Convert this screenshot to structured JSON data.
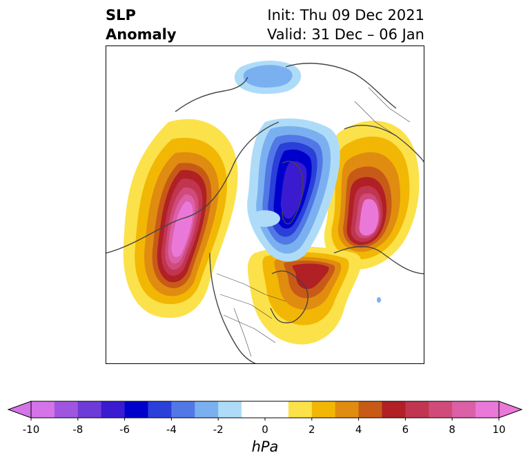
{
  "title": {
    "left_line1": "SLP",
    "left_line2": "Anomaly",
    "init": "Init: Thu 09 Dec 2021",
    "valid": "Valid: 31 Dec – 06 Jan"
  },
  "colorbar": {
    "unit": "hPa",
    "min": -10,
    "max": 10,
    "extend": "both",
    "ticks": [
      "-10",
      "-8",
      "-6",
      "-4",
      "-2",
      "0",
      "2",
      "4",
      "6",
      "8",
      "10"
    ],
    "bins": [
      {
        "range": [
          -10,
          -9
        ],
        "color": "#d474e8"
      },
      {
        "range": [
          -9,
          -8
        ],
        "color": "#a055e0"
      },
      {
        "range": [
          -8,
          -7
        ],
        "color": "#6d3bd8"
      },
      {
        "range": [
          -7,
          -6
        ],
        "color": "#3a1bd0"
      },
      {
        "range": [
          -6,
          -5
        ],
        "color": "#0000cc"
      },
      {
        "range": [
          -5,
          -4
        ],
        "color": "#2a40d9"
      },
      {
        "range": [
          -4,
          -3
        ],
        "color": "#5278e6"
      },
      {
        "range": [
          -3,
          -2
        ],
        "color": "#7bb0f0"
      },
      {
        "range": [
          -2,
          -1
        ],
        "color": "#aedcf8"
      },
      {
        "range": [
          -1,
          1
        ],
        "color": "#ffffff"
      },
      {
        "range": [
          1,
          2
        ],
        "color": "#fce24a"
      },
      {
        "range": [
          2,
          3
        ],
        "color": "#f2b705"
      },
      {
        "range": [
          3,
          4
        ],
        "color": "#e08c10"
      },
      {
        "range": [
          4,
          5
        ],
        "color": "#c85a18"
      },
      {
        "range": [
          5,
          6
        ],
        "color": "#b02024"
      },
      {
        "range": [
          6,
          7
        ],
        "color": "#c03550"
      },
      {
        "range": [
          7,
          8
        ],
        "color": "#d04a7a"
      },
      {
        "range": [
          8,
          9
        ],
        "color": "#dc60a8"
      },
      {
        "range": [
          9,
          10
        ],
        "color": "#ea78d8"
      }
    ],
    "under_color": "#d474e8",
    "over_color": "#ea78d8"
  },
  "map": {
    "projection": "north-polar stereographic",
    "features": [
      {
        "name": "north-pacific-high",
        "sign": "positive",
        "peak_hpa": 10
      },
      {
        "name": "eurasia-arctic-high",
        "sign": "positive",
        "peak_hpa": 10
      },
      {
        "name": "north-atlantic-high",
        "sign": "positive",
        "peak_hpa": 6
      },
      {
        "name": "arctic-low",
        "sign": "negative",
        "peak_hpa": -6
      },
      {
        "name": "siberia-low",
        "sign": "negative",
        "peak_hpa": -3
      }
    ]
  }
}
